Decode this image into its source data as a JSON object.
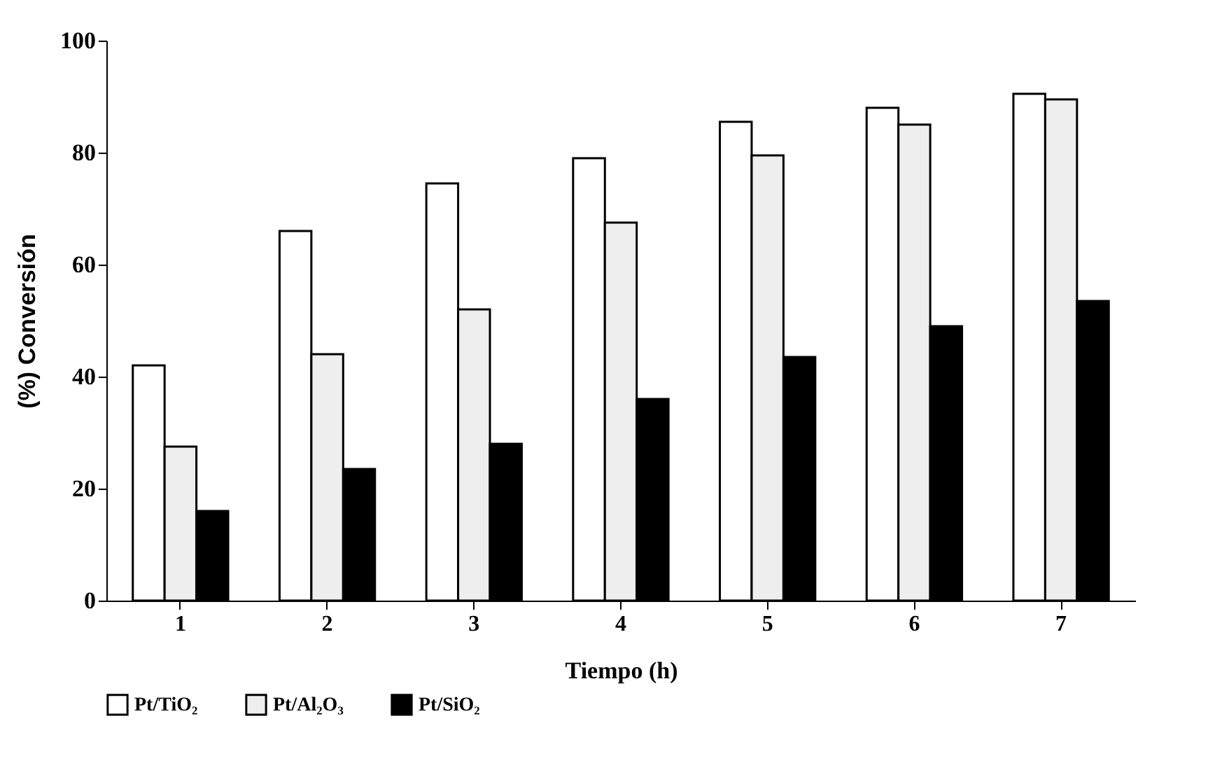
{
  "chart_data": {
    "type": "bar",
    "xlabel": "Tiempo (h)",
    "ylabel": "(%) Conversión",
    "categories": [
      "1",
      "2",
      "3",
      "4",
      "5",
      "6",
      "7"
    ],
    "series": [
      {
        "name": "Pt/TiO₂",
        "color": "#ffffff",
        "values": [
          42,
          66,
          74.5,
          79,
          85.5,
          88,
          90.5
        ]
      },
      {
        "name": "Pt/Al₂O₃",
        "color": "#eeeeee",
        "values": [
          27.5,
          44,
          52,
          67.5,
          79.5,
          85,
          89.5
        ]
      },
      {
        "name": "Pt/SiO₂",
        "color": "#000000",
        "values": [
          16,
          23.5,
          28,
          36,
          43.5,
          49,
          53.5
        ]
      }
    ],
    "ylim": [
      0,
      100
    ],
    "yticks": [
      0,
      20,
      40,
      60,
      80,
      100
    ],
    "grid": false,
    "legend": "bottom"
  }
}
